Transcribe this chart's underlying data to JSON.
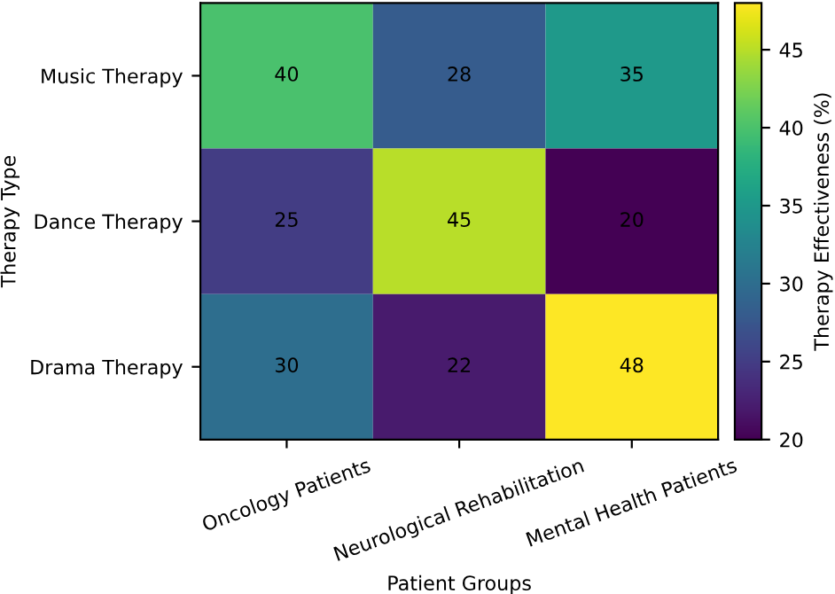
{
  "chart_data": {
    "type": "heatmap",
    "xlabel": "Patient Groups",
    "ylabel": "Therapy Type",
    "clabel": "Therapy Effectiveness (%)",
    "categories": [
      "Oncology Patients",
      "Neurological Rehabilitation",
      "Mental Health Patients"
    ],
    "y_categories": [
      "Music Therapy",
      "Dance Therapy",
      "Drama Therapy"
    ],
    "cells": [
      [
        40,
        28,
        35
      ],
      [
        25,
        45,
        20
      ],
      [
        30,
        22,
        48
      ]
    ],
    "data_labels": true,
    "clim": [
      20,
      48
    ],
    "cticks": [
      20,
      25,
      30,
      35,
      40,
      45
    ]
  }
}
